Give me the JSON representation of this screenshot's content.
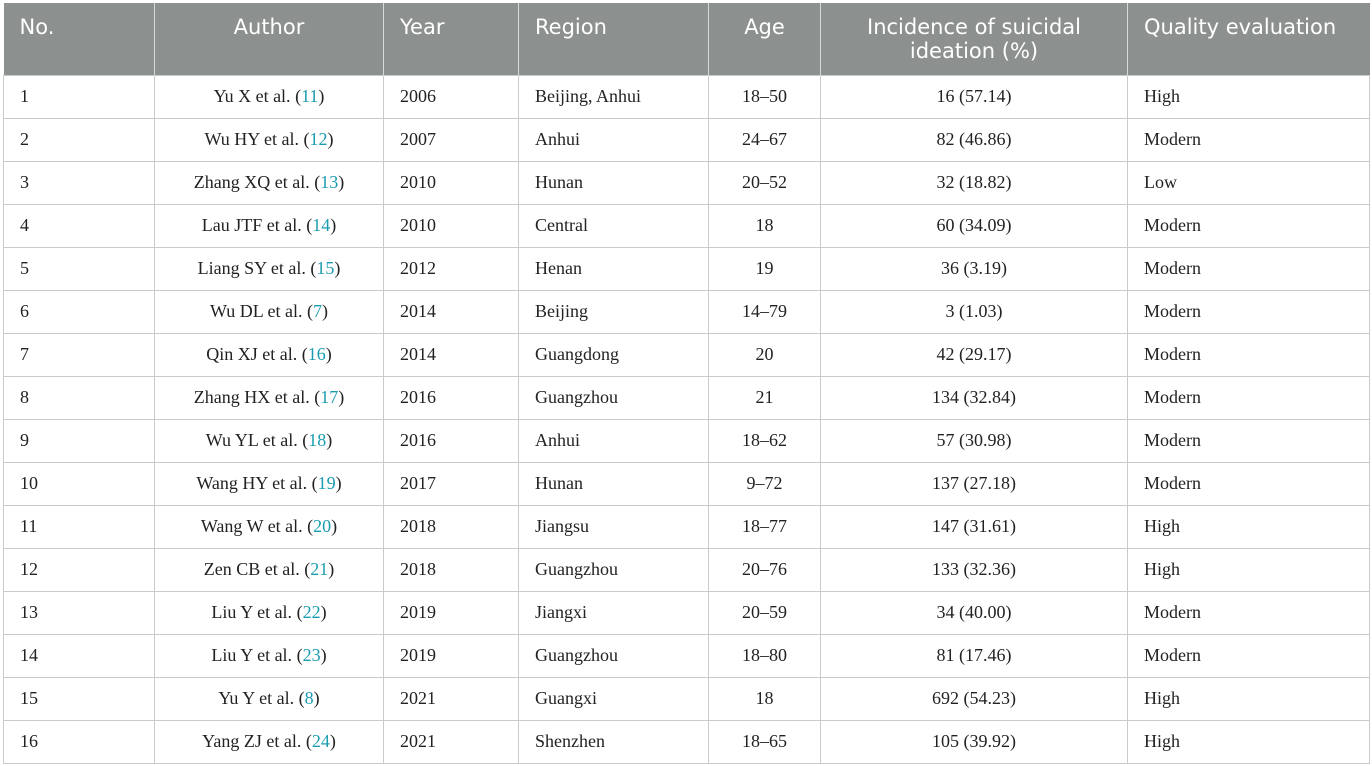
{
  "headers": {
    "no": "No.",
    "author": "Author",
    "year": "Year",
    "region": "Region",
    "age": "Age",
    "incidence": "Incidence of suicidal ideation (%)",
    "quality": "Quality evaluation"
  },
  "rows": [
    {
      "no": "1",
      "author": "Yu X et al.",
      "ref": "11",
      "year": "2006",
      "region": "Beijing, Anhui",
      "age": "18–50",
      "incidence": "16 (57.14)",
      "quality": "High"
    },
    {
      "no": "2",
      "author": "Wu HY et al.",
      "ref": "12",
      "year": "2007",
      "region": "Anhui",
      "age": "24–67",
      "incidence": "82 (46.86)",
      "quality": "Modern"
    },
    {
      "no": "3",
      "author": "Zhang XQ et al.",
      "ref": "13",
      "year": "2010",
      "region": "Hunan",
      "age": "20–52",
      "incidence": "32 (18.82)",
      "quality": "Low"
    },
    {
      "no": "4",
      "author": "Lau JTF et al.",
      "ref": "14",
      "year": "2010",
      "region": "Central",
      "age": "18",
      "incidence": "60 (34.09)",
      "quality": "Modern"
    },
    {
      "no": "5",
      "author": "Liang SY et al.",
      "ref": "15",
      "year": "2012",
      "region": "Henan",
      "age": "19",
      "incidence": "36 (3.19)",
      "quality": "Modern"
    },
    {
      "no": "6",
      "author": "Wu DL et al.",
      "ref": "7",
      "year": "2014",
      "region": "Beijing",
      "age": "14–79",
      "incidence": "3 (1.03)",
      "quality": "Modern"
    },
    {
      "no": "7",
      "author": "Qin XJ et al.",
      "ref": "16",
      "year": "2014",
      "region": "Guangdong",
      "age": "20",
      "incidence": "42 (29.17)",
      "quality": "Modern"
    },
    {
      "no": "8",
      "author": "Zhang HX et al.",
      "ref": "17",
      "year": "2016",
      "region": "Guangzhou",
      "age": "21",
      "incidence": "134 (32.84)",
      "quality": "Modern"
    },
    {
      "no": "9",
      "author": "Wu YL et al.",
      "ref": "18",
      "year": "2016",
      "region": "Anhui",
      "age": "18–62",
      "incidence": "57 (30.98)",
      "quality": "Modern"
    },
    {
      "no": "10",
      "author": "Wang HY et al.",
      "ref": "19",
      "year": "2017",
      "region": "Hunan",
      "age": "9–72",
      "incidence": "137 (27.18)",
      "quality": "Modern"
    },
    {
      "no": "11",
      "author": "Wang W et al.",
      "ref": "20",
      "year": "2018",
      "region": "Jiangsu",
      "age": "18–77",
      "incidence": "147 (31.61)",
      "quality": "High"
    },
    {
      "no": "12",
      "author": "Zen CB et al.",
      "ref": "21",
      "year": "2018",
      "region": "Guangzhou",
      "age": "20–76",
      "incidence": "133 (32.36)",
      "quality": "High"
    },
    {
      "no": "13",
      "author": "Liu Y et al.",
      "ref": "22",
      "year": "2019",
      "region": "Jiangxi",
      "age": "20–59",
      "incidence": "34 (40.00)",
      "quality": "Modern"
    },
    {
      "no": "14",
      "author": "Liu Y et al.",
      "ref": "23",
      "year": "2019",
      "region": "Guangzhou",
      "age": "18–80",
      "incidence": "81 (17.46)",
      "quality": "Modern"
    },
    {
      "no": "15",
      "author": "Yu Y et al.",
      "ref": "8",
      "year": "2021",
      "region": "Guangxi",
      "age": "18",
      "incidence": "692 (54.23)",
      "quality": "High"
    },
    {
      "no": "16",
      "author": "Yang ZJ et al.",
      "ref": "24",
      "year": "2021",
      "region": "Shenzhen",
      "age": "18–65",
      "incidence": "105 (39.92)",
      "quality": "High"
    }
  ],
  "colors": {
    "header_bg": "#8c9190",
    "header_text": "#ffffff",
    "reference_link": "#1a9cb0",
    "grid": "#c9cccc"
  }
}
